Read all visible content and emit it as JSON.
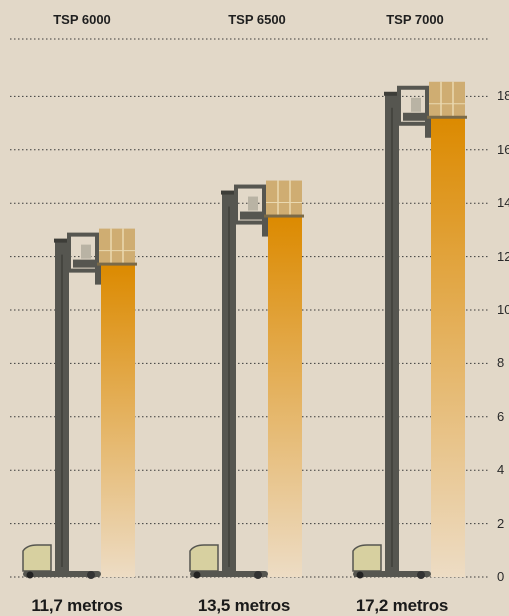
{
  "chart_data": {
    "type": "bar",
    "title": "",
    "xlabel": "",
    "ylabel": "",
    "categories": [
      "TSP 6000",
      "TSP 6500",
      "TSP 7000"
    ],
    "values": [
      11.7,
      13.5,
      17.2
    ],
    "value_labels": [
      "11,7 metros",
      "13,5 metros",
      "17,2 metros"
    ],
    "ylim": [
      0,
      18
    ],
    "yticks": [
      "0",
      "2",
      "4",
      "6",
      "8",
      "10",
      "12",
      "14",
      "16",
      "18"
    ],
    "grid": true,
    "grid_style": "dotted",
    "bar_color_top": "#dc8a00",
    "bar_color_bottom": "#eddcc4",
    "truck_color": "#565650",
    "load_color": "#cfad72"
  }
}
